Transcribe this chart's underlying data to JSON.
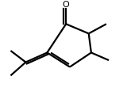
{
  "bg_color": "#ffffff",
  "line_color": "#000000",
  "line_width": 1.6,
  "dbl_off": 0.018,
  "figsize": [
    1.6,
    1.25
  ],
  "dpi": 100
}
